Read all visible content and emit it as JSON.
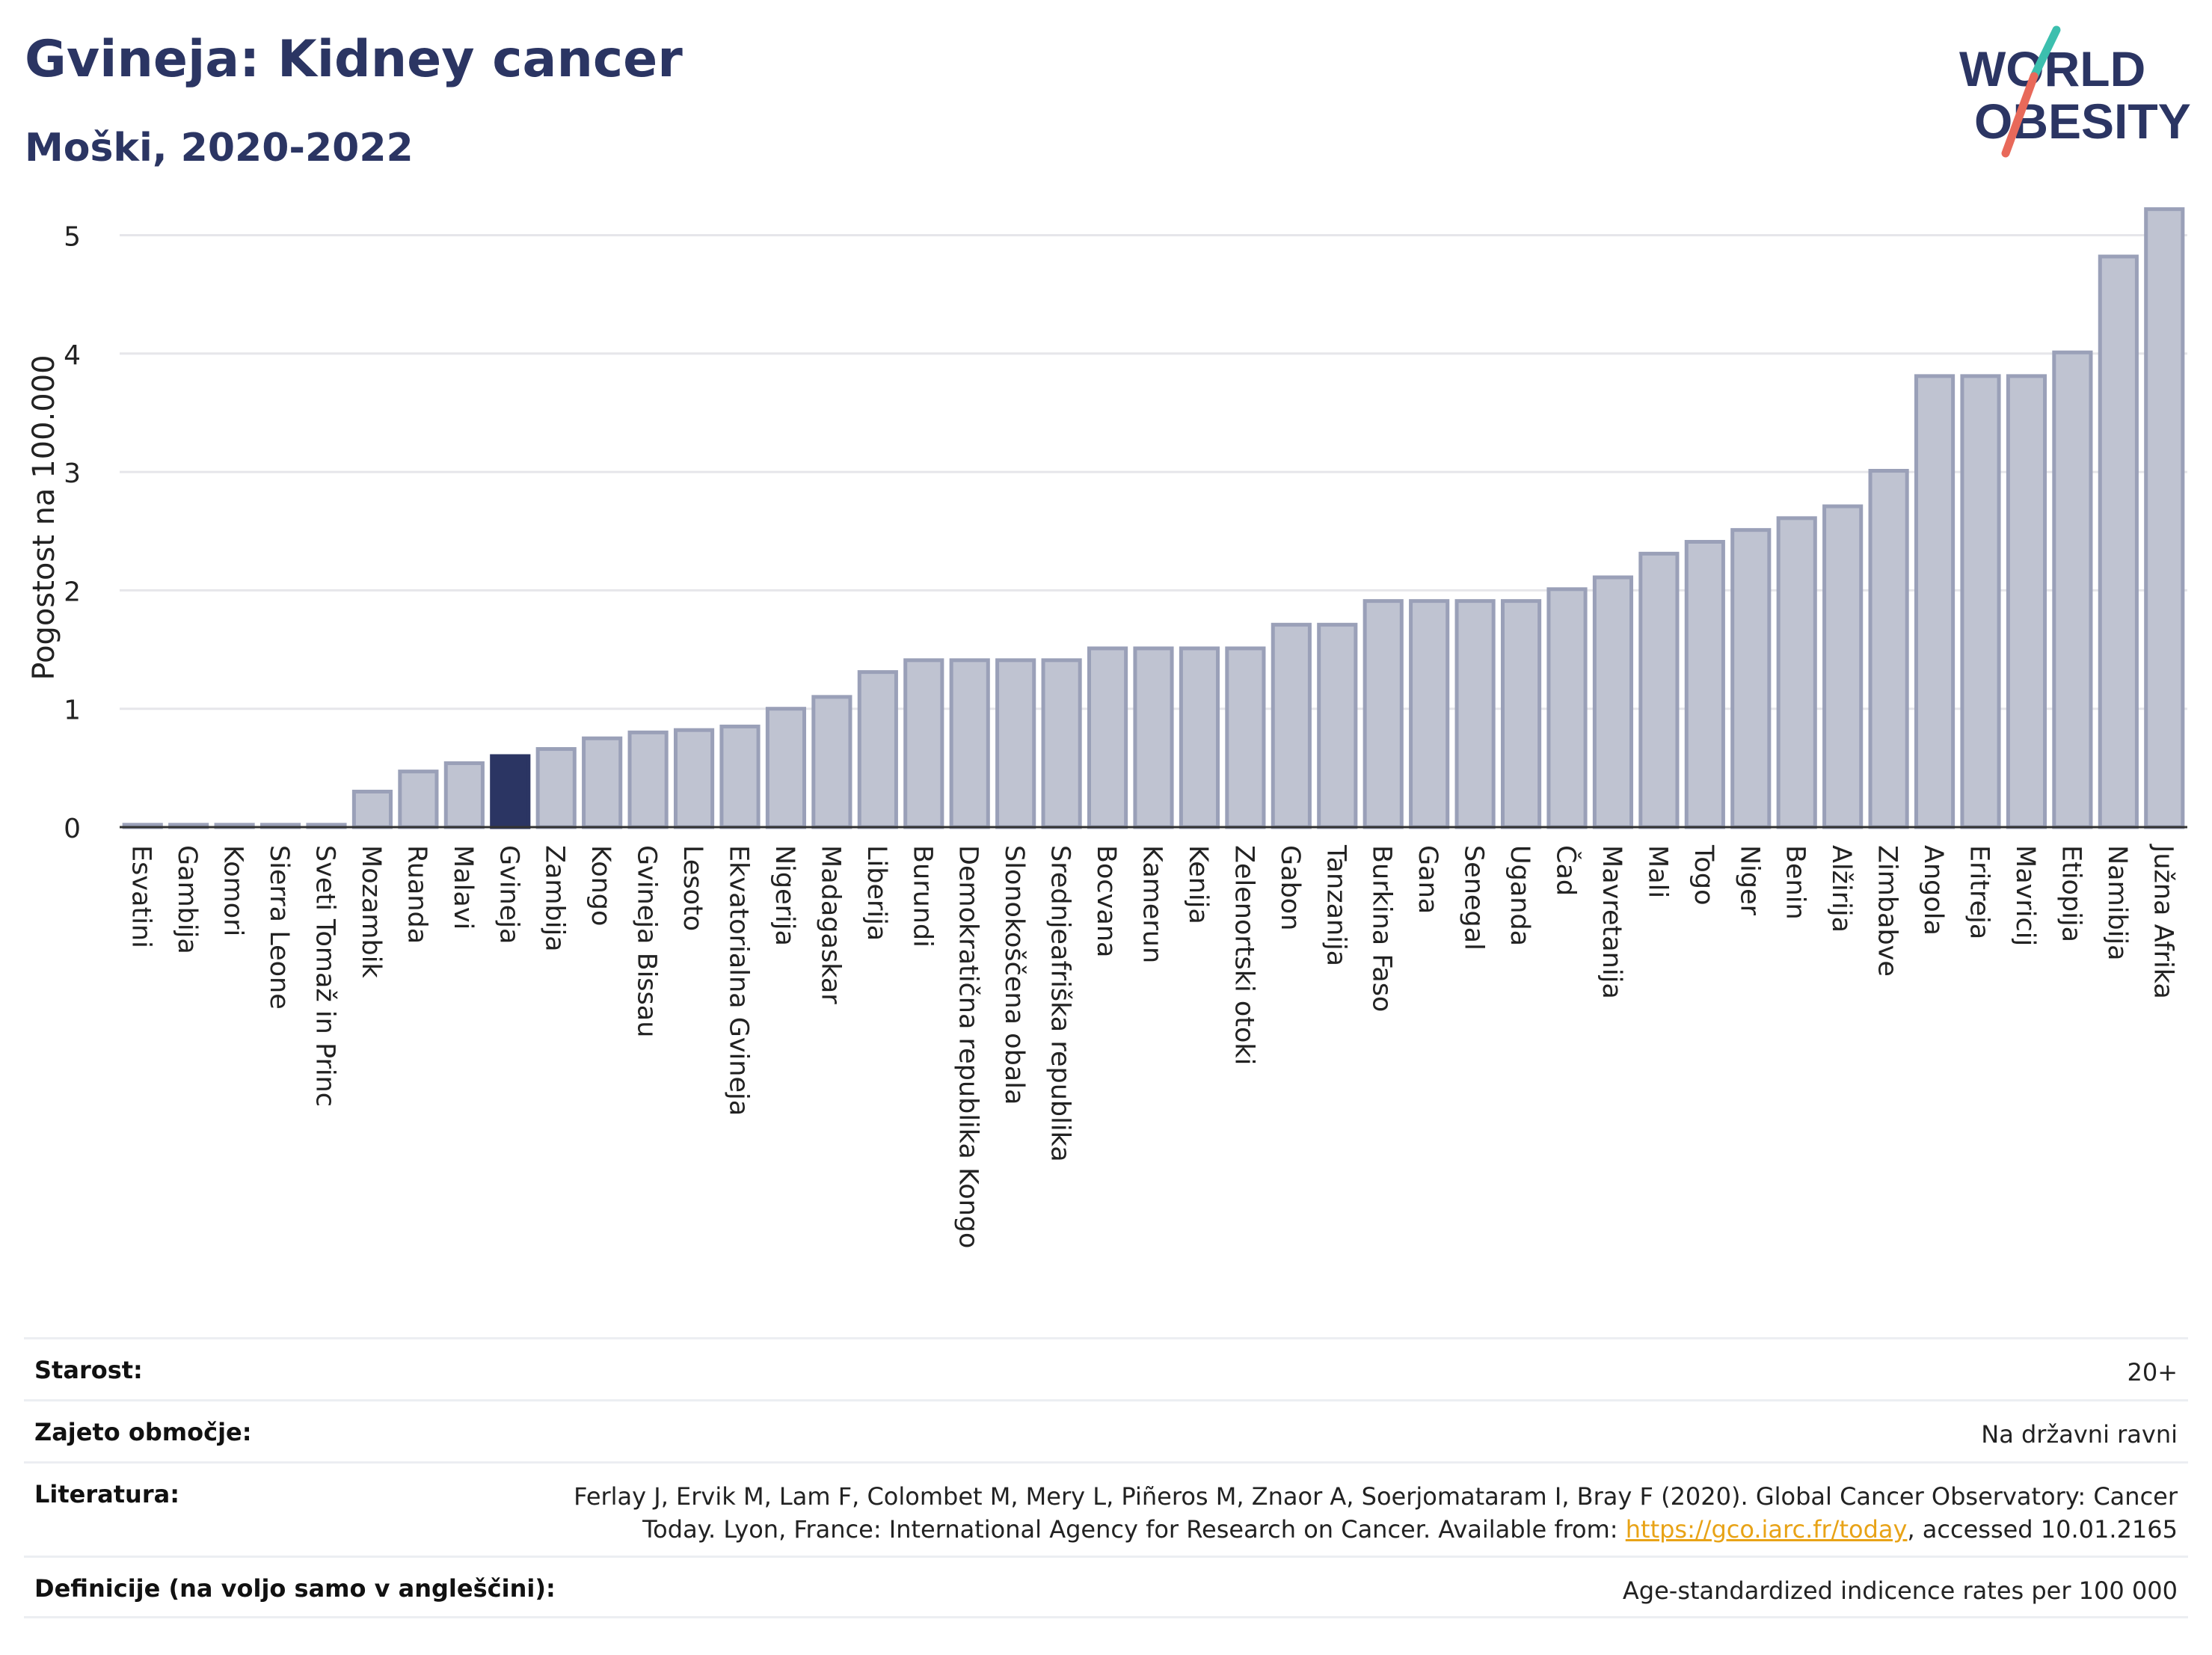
{
  "header": {
    "title": "Gvineja: Kidney cancer",
    "subtitle": "Moški, 2020-2022"
  },
  "logo": {
    "line1": "WORLD",
    "line2": "OBESITY",
    "accent_teal": "#3cbfae",
    "accent_red": "#e8695a",
    "text_color": "#2b3563"
  },
  "colors": {
    "bar": "#bfc3d1",
    "bar_stroke": "#9aa0b8",
    "highlight": "#2b3563",
    "grid": "#e6e6ea",
    "axis": "#333333"
  },
  "chart_data": {
    "type": "bar",
    "ylabel": "Pogostost na 100.000",
    "ylim": [
      0,
      5.3
    ],
    "yticks": [
      0,
      1,
      2,
      3,
      4,
      5
    ],
    "grid": true,
    "highlight": "Gvineja",
    "categories": [
      "Esvatini",
      "Gambija",
      "Komori",
      "Sierra Leone",
      "Sveti Tomaž in Princ",
      "Mozambik",
      "Ruanda",
      "Malavi",
      "Gvineja",
      "Zambija",
      "Kongo",
      "Gvineja Bissau",
      "Lesoto",
      "Ekvatorialna Gvineja",
      "Nigerija",
      "Madagaskar",
      "Liberija",
      "Burundi",
      "Demokratična republika Kongo",
      "Slonokoščena obala",
      "Srednjeafriška republika",
      "Bocvana",
      "Kamerun",
      "Kenija",
      "Zelenortski otoki",
      "Gabon",
      "Tanzanija",
      "Burkina Faso",
      "Gana",
      "Senegal",
      "Uganda",
      "Čad",
      "Mavretanija",
      "Mali",
      "Togo",
      "Niger",
      "Benin",
      "Alžirija",
      "Zimbabve",
      "Angola",
      "Eritreja",
      "Mavricij",
      "Etiopija",
      "Namibija",
      "Južna Afrika"
    ],
    "values": [
      0.02,
      0.02,
      0.02,
      0.02,
      0.02,
      0.3,
      0.47,
      0.54,
      0.6,
      0.66,
      0.75,
      0.8,
      0.82,
      0.85,
      1.0,
      1.1,
      1.31,
      1.41,
      1.41,
      1.41,
      1.41,
      1.51,
      1.51,
      1.51,
      1.51,
      1.71,
      1.71,
      1.91,
      1.91,
      1.91,
      1.91,
      2.01,
      2.11,
      2.31,
      2.41,
      2.51,
      2.61,
      2.71,
      3.01,
      3.81,
      3.81,
      3.81,
      4.01,
      4.82,
      5.22
    ]
  },
  "info": {
    "age_label": "Starost:",
    "age_value": "20+",
    "coverage_label": "Zajeto območje:",
    "coverage_value": "Na državni ravni",
    "literature_label": "Literatura:",
    "literature_line1": "Ferlay J, Ervik M, Lam F, Colombet M, Mery L, Piñeros M, Znaor A, Soerjomataram I, Bray F (2020). Global Cancer Observatory: Cancer",
    "literature_line2_pre": "Today. Lyon, France: International Agency for Research on Cancer. Available from: ",
    "literature_link": "https://gco.iarc.fr/today",
    "literature_line2_post": ", accessed 10.01.2165",
    "definitions_label": "Definicije (na voljo samo v angleščini):",
    "definitions_value": "Age-standardized indicence rates per 100 000"
  }
}
